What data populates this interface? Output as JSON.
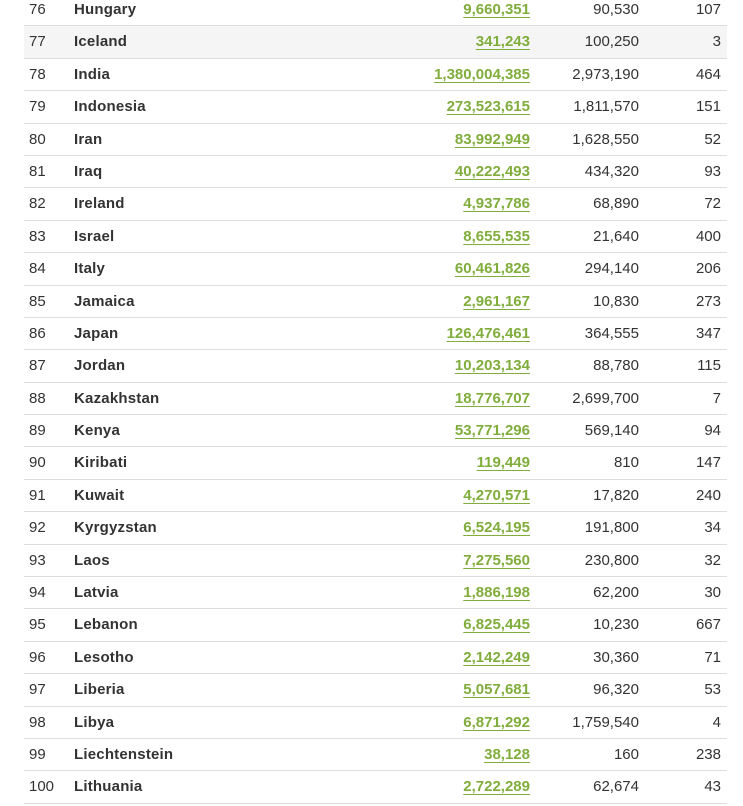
{
  "colors": {
    "link": "#80ad3c",
    "row_highlight": "#f5f5f5",
    "border": "#dddddd",
    "text": "#333333"
  },
  "rows": [
    {
      "rank": "76",
      "country": "Hungary",
      "population": "9,660,351",
      "area": "90,530",
      "density": "107"
    },
    {
      "rank": "77",
      "country": "Iceland",
      "population": "341,243",
      "area": "100,250",
      "density": "3"
    },
    {
      "rank": "78",
      "country": "India",
      "population": "1,380,004,385",
      "area": "2,973,190",
      "density": "464"
    },
    {
      "rank": "79",
      "country": "Indonesia",
      "population": "273,523,615",
      "area": "1,811,570",
      "density": "151"
    },
    {
      "rank": "80",
      "country": "Iran",
      "population": "83,992,949",
      "area": "1,628,550",
      "density": "52"
    },
    {
      "rank": "81",
      "country": "Iraq",
      "population": "40,222,493",
      "area": "434,320",
      "density": "93"
    },
    {
      "rank": "82",
      "country": "Ireland",
      "population": "4,937,786",
      "area": "68,890",
      "density": "72"
    },
    {
      "rank": "83",
      "country": "Israel",
      "population": "8,655,535",
      "area": "21,640",
      "density": "400"
    },
    {
      "rank": "84",
      "country": "Italy",
      "population": "60,461,826",
      "area": "294,140",
      "density": "206"
    },
    {
      "rank": "85",
      "country": "Jamaica",
      "population": "2,961,167",
      "area": "10,830",
      "density": "273"
    },
    {
      "rank": "86",
      "country": "Japan",
      "population": "126,476,461",
      "area": "364,555",
      "density": "347"
    },
    {
      "rank": "87",
      "country": "Jordan",
      "population": "10,203,134",
      "area": "88,780",
      "density": "115"
    },
    {
      "rank": "88",
      "country": "Kazakhstan",
      "population": "18,776,707",
      "area": "2,699,700",
      "density": "7"
    },
    {
      "rank": "89",
      "country": "Kenya",
      "population": "53,771,296",
      "area": "569,140",
      "density": "94"
    },
    {
      "rank": "90",
      "country": "Kiribati",
      "population": "119,449",
      "area": "810",
      "density": "147"
    },
    {
      "rank": "91",
      "country": "Kuwait",
      "population": "4,270,571",
      "area": "17,820",
      "density": "240"
    },
    {
      "rank": "92",
      "country": "Kyrgyzstan",
      "population": "6,524,195",
      "area": "191,800",
      "density": "34"
    },
    {
      "rank": "93",
      "country": "Laos",
      "population": "7,275,560",
      "area": "230,800",
      "density": "32"
    },
    {
      "rank": "94",
      "country": "Latvia",
      "population": "1,886,198",
      "area": "62,200",
      "density": "30"
    },
    {
      "rank": "95",
      "country": "Lebanon",
      "population": "6,825,445",
      "area": "10,230",
      "density": "667"
    },
    {
      "rank": "96",
      "country": "Lesotho",
      "population": "2,142,249",
      "area": "30,360",
      "density": "71"
    },
    {
      "rank": "97",
      "country": "Liberia",
      "population": "5,057,681",
      "area": "96,320",
      "density": "53"
    },
    {
      "rank": "98",
      "country": "Libya",
      "population": "6,871,292",
      "area": "1,759,540",
      "density": "4"
    },
    {
      "rank": "99",
      "country": "Liechtenstein",
      "population": "38,128",
      "area": "160",
      "density": "238"
    },
    {
      "rank": "100",
      "country": "Lithuania",
      "population": "2,722,289",
      "area": "62,674",
      "density": "43"
    }
  ]
}
